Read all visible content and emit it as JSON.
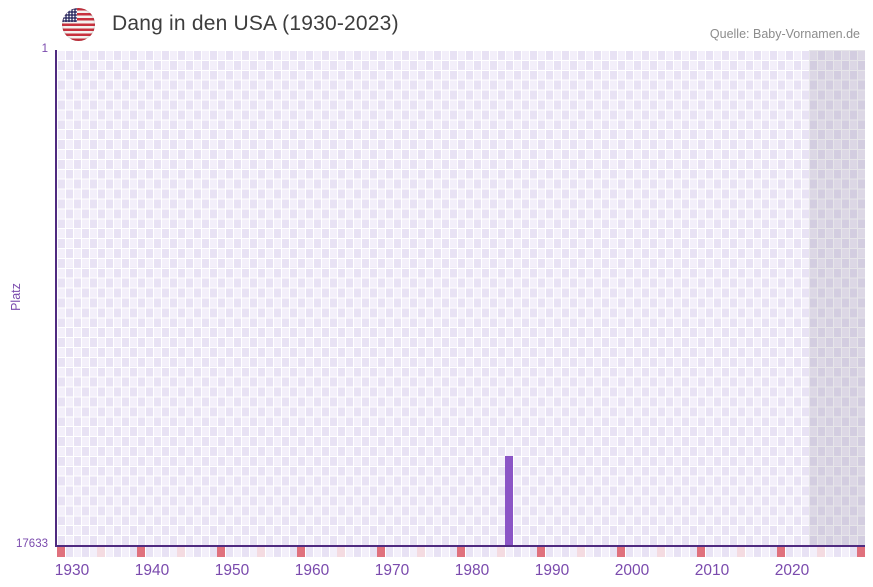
{
  "header": {
    "title": "Dang in den USA (1930-2023)",
    "source": "Quelle: Baby-Vornamen.de"
  },
  "y_axis": {
    "title": "Platz",
    "top_tick": "1",
    "bottom_tick": "17633"
  },
  "chart_data": {
    "type": "bar",
    "title": "Dang in den USA (1930-2023)",
    "xlabel": "",
    "ylabel": "Platz",
    "x_start_year": 1929,
    "x_end_year": 2029,
    "x_tick_labels": [
      "1930",
      "1940",
      "1950",
      "1960",
      "1970",
      "1980",
      "1990",
      "2000",
      "2010",
      "2020"
    ],
    "major_tick_interval": 10,
    "minor_tick_interval": 5,
    "y_min": 1,
    "y_max": 17633,
    "y_axis_inverted": true,
    "points": [
      {
        "year": 1985,
        "rank": 14460
      }
    ],
    "future_region_start_year": 2023,
    "grid": "checkerboard",
    "legend_position": "none"
  },
  "colors": {
    "bar": "#8b55c6",
    "axis_line": "#4f2a80",
    "axis_text": "#7a4aad",
    "major_tick": "#e0717d",
    "minor_tick": "#f4dbe1",
    "grid_cell_dark": "#e8e2f4",
    "grid_cell_light": "#f3effa",
    "future_overlay": "rgba(106,99,124,0.17)",
    "title_text": "#3d3d3d",
    "source_text": "#8c8c8c",
    "flag_red": "#c8313e",
    "flag_blue": "#3c3b6e"
  }
}
